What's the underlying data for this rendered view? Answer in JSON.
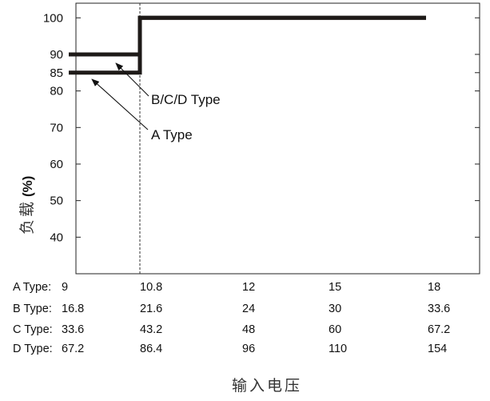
{
  "chart_data": {
    "type": "line",
    "ylabel": {
      "cjk": "负载",
      "unit": "(%)"
    },
    "xlabel": "输入电压",
    "ylim": [
      30,
      104
    ],
    "y_ticks": [
      40,
      50,
      60,
      70,
      80,
      85,
      90,
      100
    ],
    "grid": false,
    "table_rows": [
      {
        "label": "A Type:",
        "values": [
          "9",
          "10.8",
          "12",
          "15",
          "18"
        ]
      },
      {
        "label": "B Type:",
        "values": [
          "16.8",
          "21.6",
          "24",
          "30",
          "33.6"
        ]
      },
      {
        "label": "C Type:",
        "values": [
          "33.6",
          "43.2",
          "48",
          "60",
          "67.2"
        ]
      },
      {
        "label": "D Type:",
        "values": [
          "67.2",
          "86.4",
          "96",
          "110",
          "154"
        ]
      }
    ],
    "x_category_index": [
      0,
      1,
      2,
      3,
      4
    ],
    "series": [
      {
        "name": "A Type",
        "points": [
          [
            0,
            85
          ],
          [
            1,
            85
          ],
          [
            1,
            100
          ],
          [
            4,
            100
          ]
        ]
      },
      {
        "name": "B/C/D Type",
        "points": [
          [
            0,
            90
          ],
          [
            1,
            90
          ],
          [
            1,
            100
          ],
          [
            4,
            100
          ]
        ]
      }
    ],
    "reference_line": {
      "x_index": 1,
      "style": "dashed"
    },
    "annotations": [
      {
        "text": "B/C/D Type",
        "target_series": "B/C/D Type"
      },
      {
        "text": "A Type",
        "target_series": "A Type"
      }
    ],
    "colors": {
      "line": "#1e1a18",
      "axis": "#222222",
      "text": "#111111"
    }
  }
}
